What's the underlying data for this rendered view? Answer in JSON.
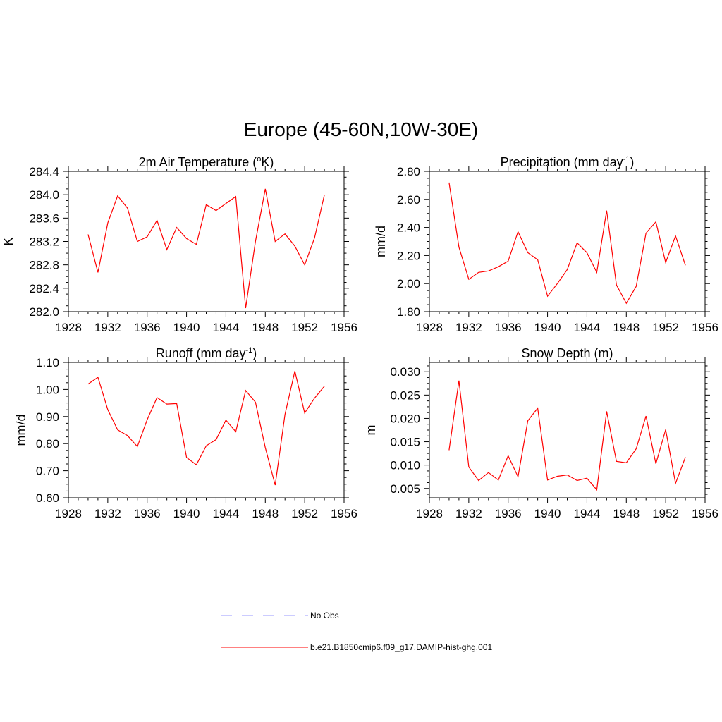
{
  "figure": {
    "title": "Europe (45-60N,10W-30E)"
  },
  "legend": [
    {
      "label": "No Obs",
      "color": "#9999ff",
      "style": "dashed"
    },
    {
      "label": "b.e21.B1850cmip6.f09_g17.DAMIP-hist-ghg.001",
      "color": "#ff0000",
      "style": "solid"
    }
  ],
  "chart_data": [
    {
      "type": "line",
      "title": "2m Air Temperature (",
      "title_sup": "o",
      "title_after": "K)",
      "ylabel": "K",
      "xlim": [
        1928,
        1956
      ],
      "xticks": [
        1928,
        1932,
        1936,
        1940,
        1944,
        1948,
        1952,
        1956
      ],
      "ylim": [
        282.0,
        284.4
      ],
      "yticks": [
        282.0,
        282.4,
        282.8,
        283.2,
        283.6,
        284.0,
        284.4
      ],
      "ytick_labels": [
        "282.0",
        "282.4",
        "282.8",
        "283.2",
        "283.6",
        "284.0",
        "284.4"
      ],
      "series": [
        {
          "name": "b.e21.B1850cmip6.f09_g17.DAMIP-hist-ghg.001",
          "x": [
            1930,
            1931,
            1932,
            1933,
            1934,
            1935,
            1936,
            1937,
            1938,
            1939,
            1940,
            1941,
            1942,
            1943,
            1944,
            1945,
            1946,
            1947,
            1948,
            1949,
            1950,
            1951,
            1952,
            1953,
            1954
          ],
          "values": [
            283.32,
            282.67,
            283.52,
            283.98,
            283.77,
            283.2,
            283.28,
            283.56,
            283.06,
            283.44,
            283.25,
            283.15,
            283.83,
            283.73,
            283.85,
            283.97,
            282.06,
            283.2,
            284.1,
            283.2,
            283.33,
            283.12,
            282.8,
            283.26,
            284.0
          ]
        }
      ]
    },
    {
      "type": "line",
      "title": "Precipitation (mm day",
      "title_sup": "-1",
      "title_after": ")",
      "ylabel": "mm/d",
      "xlim": [
        1928,
        1956
      ],
      "xticks": [
        1928,
        1932,
        1936,
        1940,
        1944,
        1948,
        1952,
        1956
      ],
      "ylim": [
        1.8,
        2.8
      ],
      "yticks": [
        1.8,
        2.0,
        2.2,
        2.4,
        2.6,
        2.8
      ],
      "ytick_labels": [
        "1.80",
        "2.00",
        "2.20",
        "2.40",
        "2.60",
        "2.80"
      ],
      "series": [
        {
          "name": "b.e21.B1850cmip6.f09_g17.DAMIP-hist-ghg.001",
          "x": [
            1930,
            1931,
            1932,
            1933,
            1934,
            1935,
            1936,
            1937,
            1938,
            1939,
            1940,
            1941,
            1942,
            1943,
            1944,
            1945,
            1946,
            1947,
            1948,
            1949,
            1950,
            1951,
            1952,
            1953,
            1954
          ],
          "values": [
            2.72,
            2.26,
            2.03,
            2.08,
            2.09,
            2.12,
            2.16,
            2.37,
            2.22,
            2.17,
            1.91,
            2.0,
            2.1,
            2.29,
            2.22,
            2.08,
            2.52,
            1.99,
            1.86,
            1.98,
            2.36,
            2.44,
            2.15,
            2.34,
            2.13
          ]
        }
      ]
    },
    {
      "type": "line",
      "title": "Runoff (mm day",
      "title_sup": "-1",
      "title_after": ")",
      "ylabel": "mm/d",
      "xlim": [
        1928,
        1956
      ],
      "xticks": [
        1928,
        1932,
        1936,
        1940,
        1944,
        1948,
        1952,
        1956
      ],
      "ylim": [
        0.6,
        1.1
      ],
      "yticks": [
        0.6,
        0.7,
        0.8,
        0.9,
        1.0,
        1.1
      ],
      "ytick_labels": [
        "0.60",
        "0.70",
        "0.80",
        "0.90",
        "1.00",
        "1.10"
      ],
      "series": [
        {
          "name": "b.e21.B1850cmip6.f09_g17.DAMIP-hist-ghg.001",
          "x": [
            1930,
            1931,
            1932,
            1933,
            1934,
            1935,
            1936,
            1937,
            1938,
            1939,
            1940,
            1941,
            1942,
            1943,
            1944,
            1945,
            1946,
            1947,
            1948,
            1949,
            1950,
            1951,
            1952,
            1953,
            1954
          ],
          "values": [
            1.02,
            1.045,
            0.925,
            0.851,
            0.83,
            0.789,
            0.888,
            0.97,
            0.946,
            0.948,
            0.749,
            0.722,
            0.792,
            0.815,
            0.887,
            0.844,
            0.996,
            0.953,
            0.785,
            0.647,
            0.908,
            1.068,
            0.913,
            0.968,
            1.012
          ]
        }
      ]
    },
    {
      "type": "line",
      "title": "Snow Depth (m)",
      "title_sup": "",
      "title_after": "",
      "ylabel": "m",
      "xlim": [
        1928,
        1956
      ],
      "xticks": [
        1928,
        1932,
        1936,
        1940,
        1944,
        1948,
        1952,
        1956
      ],
      "ylim": [
        0.003,
        0.032
      ],
      "yticks": [
        0.005,
        0.01,
        0.015,
        0.02,
        0.025,
        0.03
      ],
      "ytick_labels": [
        "0.005",
        "0.010",
        "0.015",
        "0.020",
        "0.025",
        "0.030"
      ],
      "series": [
        {
          "name": "b.e21.B1850cmip6.f09_g17.DAMIP-hist-ghg.001",
          "x": [
            1930,
            1931,
            1932,
            1933,
            1934,
            1935,
            1936,
            1937,
            1938,
            1939,
            1940,
            1941,
            1942,
            1943,
            1944,
            1945,
            1946,
            1947,
            1948,
            1949,
            1950,
            1951,
            1952,
            1953,
            1954
          ],
          "values": [
            0.0132,
            0.0281,
            0.0096,
            0.0067,
            0.0084,
            0.0068,
            0.012,
            0.0075,
            0.0195,
            0.0222,
            0.0068,
            0.0076,
            0.0079,
            0.0067,
            0.0072,
            0.0047,
            0.0215,
            0.0108,
            0.0105,
            0.0135,
            0.0205,
            0.0103,
            0.0176,
            0.0061,
            0.0117
          ]
        }
      ]
    }
  ]
}
